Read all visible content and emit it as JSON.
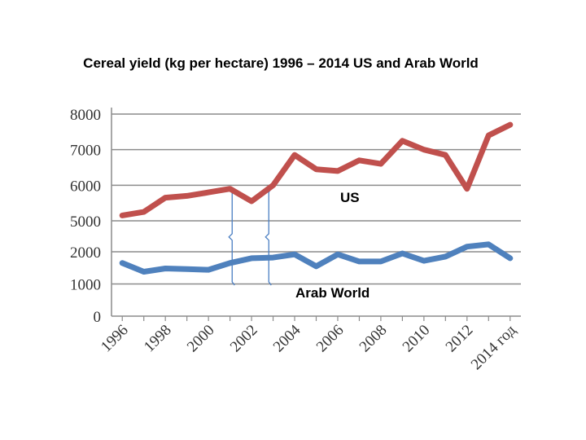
{
  "chart_data": {
    "type": "line",
    "title": "Cereal yield (kg per hectare)  1996 – 2014 US and Arab World",
    "xlabel": "",
    "ylabel": "",
    "x": [
      1996,
      1997,
      1998,
      1999,
      2000,
      2001,
      2002,
      2003,
      2004,
      2005,
      2006,
      2007,
      2008,
      2009,
      2010,
      2011,
      2012,
      2013,
      2014
    ],
    "x_tick_labels": [
      "1996",
      "1998",
      "2000",
      "2002",
      "2004",
      "2006",
      "2008",
      "2010",
      "2012",
      "2014 год"
    ],
    "y_tick_labels": [
      "0",
      "1000",
      "2000",
      "5000",
      "6000",
      "7000",
      "8000"
    ],
    "y_tick_values": [
      0,
      1000,
      2000,
      5000,
      6000,
      7000,
      8000
    ],
    "axis_note": "Broken y-axis: the range 2000–5000 is compressed",
    "grid": true,
    "series": [
      {
        "name": "US",
        "color": "#c0504d",
        "values": [
          5150,
          5250,
          5650,
          5700,
          5800,
          5900,
          5550,
          6000,
          6850,
          6450,
          6400,
          6700,
          6600,
          7250,
          7000,
          6850,
          5900,
          7400,
          7700
        ]
      },
      {
        "name": "Arab World",
        "color": "#4f81bd",
        "values": [
          1650,
          1380,
          1480,
          1460,
          1440,
          1650,
          1800,
          1820,
          1920,
          1550,
          1920,
          1700,
          1700,
          1950,
          1720,
          1850,
          2500,
          2720,
          1800
        ]
      }
    ],
    "annotations": [
      {
        "text": "US",
        "series": "US"
      },
      {
        "text": "Arab World",
        "series": "Arab World"
      },
      {
        "text": "brace",
        "between_x": [
          2001,
          2002.8
        ]
      }
    ]
  }
}
